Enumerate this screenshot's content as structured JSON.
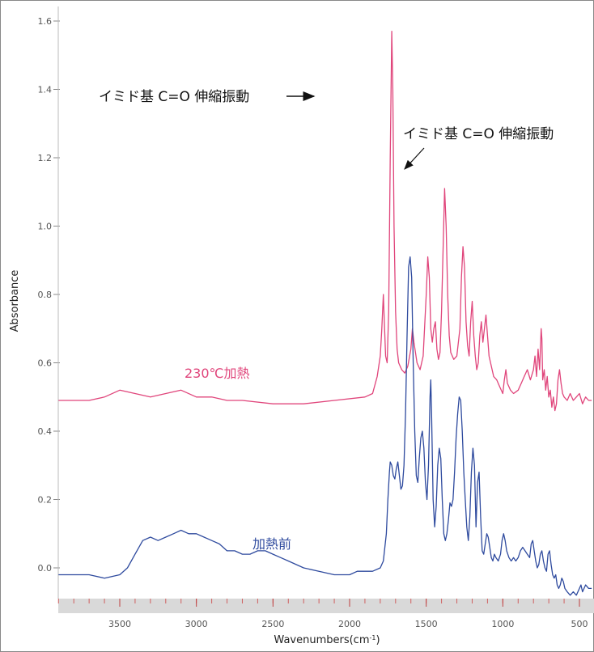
{
  "chart_data": {
    "type": "line",
    "xlabel": "Wavenumbers(cm-1)",
    "xlabel_main": "Wavenumbers(cm",
    "xlabel_sup": "-1",
    "xlabel_close": ")",
    "ylabel": "Absorbance",
    "xlim": [
      3900,
      420
    ],
    "ylim": [
      -0.1,
      1.6
    ],
    "x_ticks": [
      3500,
      3000,
      2500,
      2000,
      1500,
      1000,
      500
    ],
    "x_tick_labels": [
      "3500",
      "3000",
      "2500",
      "2000",
      "1500",
      "1000",
      "500"
    ],
    "y_ticks": [
      0.0,
      0.2,
      0.4,
      0.6,
      0.8,
      1.0,
      1.2,
      1.4,
      1.6
    ],
    "y_tick_labels": [
      "0.0",
      "0.2",
      "0.4",
      "0.6",
      "0.8",
      "1.0",
      "1.2",
      "1.4",
      "1.6"
    ],
    "grid": false,
    "series": [
      {
        "name": "230℃加熱",
        "color": "#e0457b",
        "points": [
          [
            3900,
            0.49
          ],
          [
            3700,
            0.49
          ],
          [
            3600,
            0.5
          ],
          [
            3500,
            0.52
          ],
          [
            3400,
            0.51
          ],
          [
            3300,
            0.5
          ],
          [
            3200,
            0.51
          ],
          [
            3100,
            0.52
          ],
          [
            3000,
            0.5
          ],
          [
            2900,
            0.5
          ],
          [
            2800,
            0.49
          ],
          [
            2700,
            0.49
          ],
          [
            2500,
            0.48
          ],
          [
            2300,
            0.48
          ],
          [
            2100,
            0.49
          ],
          [
            1900,
            0.5
          ],
          [
            1850,
            0.51
          ],
          [
            1820,
            0.56
          ],
          [
            1800,
            0.62
          ],
          [
            1790,
            0.7
          ],
          [
            1780,
            0.8
          ],
          [
            1775,
            0.74
          ],
          [
            1765,
            0.62
          ],
          [
            1755,
            0.6
          ],
          [
            1745,
            0.75
          ],
          [
            1735,
            1.2
          ],
          [
            1725,
            1.57
          ],
          [
            1718,
            1.4
          ],
          [
            1710,
            1.0
          ],
          [
            1700,
            0.75
          ],
          [
            1690,
            0.64
          ],
          [
            1680,
            0.6
          ],
          [
            1660,
            0.58
          ],
          [
            1640,
            0.57
          ],
          [
            1620,
            0.59
          ],
          [
            1600,
            0.64
          ],
          [
            1590,
            0.7
          ],
          [
            1580,
            0.66
          ],
          [
            1560,
            0.6
          ],
          [
            1540,
            0.58
          ],
          [
            1520,
            0.62
          ],
          [
            1500,
            0.8
          ],
          [
            1490,
            0.91
          ],
          [
            1480,
            0.85
          ],
          [
            1470,
            0.7
          ],
          [
            1460,
            0.66
          ],
          [
            1450,
            0.7
          ],
          [
            1440,
            0.72
          ],
          [
            1430,
            0.64
          ],
          [
            1420,
            0.61
          ],
          [
            1410,
            0.63
          ],
          [
            1400,
            0.75
          ],
          [
            1390,
            0.93
          ],
          [
            1380,
            1.11
          ],
          [
            1370,
            1.0
          ],
          [
            1360,
            0.8
          ],
          [
            1350,
            0.68
          ],
          [
            1340,
            0.63
          ],
          [
            1320,
            0.61
          ],
          [
            1300,
            0.62
          ],
          [
            1280,
            0.7
          ],
          [
            1270,
            0.85
          ],
          [
            1260,
            0.94
          ],
          [
            1250,
            0.88
          ],
          [
            1240,
            0.72
          ],
          [
            1230,
            0.65
          ],
          [
            1220,
            0.62
          ],
          [
            1210,
            0.72
          ],
          [
            1200,
            0.78
          ],
          [
            1190,
            0.68
          ],
          [
            1180,
            0.62
          ],
          [
            1170,
            0.58
          ],
          [
            1160,
            0.6
          ],
          [
            1150,
            0.68
          ],
          [
            1140,
            0.72
          ],
          [
            1130,
            0.66
          ],
          [
            1120,
            0.7
          ],
          [
            1110,
            0.74
          ],
          [
            1100,
            0.68
          ],
          [
            1090,
            0.62
          ],
          [
            1080,
            0.6
          ],
          [
            1060,
            0.56
          ],
          [
            1040,
            0.55
          ],
          [
            1020,
            0.53
          ],
          [
            1000,
            0.51
          ],
          [
            990,
            0.55
          ],
          [
            980,
            0.58
          ],
          [
            970,
            0.54
          ],
          [
            950,
            0.52
          ],
          [
            930,
            0.51
          ],
          [
            900,
            0.52
          ],
          [
            880,
            0.54
          ],
          [
            860,
            0.56
          ],
          [
            840,
            0.58
          ],
          [
            820,
            0.55
          ],
          [
            800,
            0.58
          ],
          [
            790,
            0.62
          ],
          [
            780,
            0.56
          ],
          [
            770,
            0.64
          ],
          [
            760,
            0.58
          ],
          [
            750,
            0.7
          ],
          [
            745,
            0.67
          ],
          [
            740,
            0.55
          ],
          [
            730,
            0.58
          ],
          [
            720,
            0.52
          ],
          [
            710,
            0.56
          ],
          [
            700,
            0.5
          ],
          [
            690,
            0.52
          ],
          [
            680,
            0.47
          ],
          [
            670,
            0.5
          ],
          [
            660,
            0.46
          ],
          [
            650,
            0.48
          ],
          [
            640,
            0.55
          ],
          [
            630,
            0.58
          ],
          [
            620,
            0.54
          ],
          [
            610,
            0.51
          ],
          [
            600,
            0.5
          ],
          [
            580,
            0.49
          ],
          [
            560,
            0.51
          ],
          [
            540,
            0.49
          ],
          [
            520,
            0.5
          ],
          [
            500,
            0.51
          ],
          [
            480,
            0.48
          ],
          [
            460,
            0.5
          ],
          [
            440,
            0.49
          ],
          [
            420,
            0.49
          ]
        ]
      },
      {
        "name": "加熱前",
        "color": "#2e4a9e",
        "points": [
          [
            3900,
            -0.02
          ],
          [
            3800,
            -0.02
          ],
          [
            3700,
            -0.02
          ],
          [
            3600,
            -0.03
          ],
          [
            3500,
            -0.02
          ],
          [
            3450,
            0.0
          ],
          [
            3400,
            0.04
          ],
          [
            3350,
            0.08
          ],
          [
            3300,
            0.09
          ],
          [
            3250,
            0.08
          ],
          [
            3200,
            0.09
          ],
          [
            3150,
            0.1
          ],
          [
            3100,
            0.11
          ],
          [
            3050,
            0.1
          ],
          [
            3000,
            0.1
          ],
          [
            2950,
            0.09
          ],
          [
            2900,
            0.08
          ],
          [
            2850,
            0.07
          ],
          [
            2800,
            0.05
          ],
          [
            2750,
            0.05
          ],
          [
            2700,
            0.04
          ],
          [
            2650,
            0.04
          ],
          [
            2600,
            0.05
          ],
          [
            2550,
            0.05
          ],
          [
            2500,
            0.04
          ],
          [
            2450,
            0.03
          ],
          [
            2400,
            0.02
          ],
          [
            2300,
            0.0
          ],
          [
            2200,
            -0.01
          ],
          [
            2100,
            -0.02
          ],
          [
            2000,
            -0.02
          ],
          [
            1950,
            -0.01
          ],
          [
            1900,
            -0.01
          ],
          [
            1850,
            -0.01
          ],
          [
            1800,
            0.0
          ],
          [
            1780,
            0.02
          ],
          [
            1760,
            0.1
          ],
          [
            1750,
            0.2
          ],
          [
            1740,
            0.28
          ],
          [
            1735,
            0.31
          ],
          [
            1725,
            0.3
          ],
          [
            1715,
            0.27
          ],
          [
            1705,
            0.26
          ],
          [
            1695,
            0.29
          ],
          [
            1685,
            0.31
          ],
          [
            1675,
            0.27
          ],
          [
            1665,
            0.23
          ],
          [
            1655,
            0.24
          ],
          [
            1645,
            0.3
          ],
          [
            1635,
            0.45
          ],
          [
            1625,
            0.68
          ],
          [
            1615,
            0.88
          ],
          [
            1605,
            0.91
          ],
          [
            1595,
            0.85
          ],
          [
            1585,
            0.6
          ],
          [
            1575,
            0.4
          ],
          [
            1565,
            0.27
          ],
          [
            1555,
            0.25
          ],
          [
            1545,
            0.32
          ],
          [
            1535,
            0.38
          ],
          [
            1525,
            0.4
          ],
          [
            1515,
            0.35
          ],
          [
            1505,
            0.25
          ],
          [
            1495,
            0.2
          ],
          [
            1485,
            0.3
          ],
          [
            1475,
            0.5
          ],
          [
            1470,
            0.55
          ],
          [
            1465,
            0.45
          ],
          [
            1455,
            0.2
          ],
          [
            1445,
            0.12
          ],
          [
            1435,
            0.18
          ],
          [
            1425,
            0.3
          ],
          [
            1415,
            0.35
          ],
          [
            1405,
            0.32
          ],
          [
            1395,
            0.2
          ],
          [
            1385,
            0.1
          ],
          [
            1375,
            0.08
          ],
          [
            1365,
            0.1
          ],
          [
            1355,
            0.14
          ],
          [
            1345,
            0.19
          ],
          [
            1335,
            0.18
          ],
          [
            1325,
            0.2
          ],
          [
            1315,
            0.28
          ],
          [
            1305,
            0.38
          ],
          [
            1295,
            0.45
          ],
          [
            1285,
            0.5
          ],
          [
            1275,
            0.49
          ],
          [
            1265,
            0.4
          ],
          [
            1255,
            0.28
          ],
          [
            1245,
            0.2
          ],
          [
            1235,
            0.12
          ],
          [
            1225,
            0.08
          ],
          [
            1215,
            0.15
          ],
          [
            1205,
            0.28
          ],
          [
            1195,
            0.35
          ],
          [
            1185,
            0.3
          ],
          [
            1175,
            0.12
          ],
          [
            1165,
            0.25
          ],
          [
            1155,
            0.28
          ],
          [
            1145,
            0.15
          ],
          [
            1135,
            0.05
          ],
          [
            1125,
            0.04
          ],
          [
            1115,
            0.07
          ],
          [
            1105,
            0.1
          ],
          [
            1095,
            0.09
          ],
          [
            1085,
            0.06
          ],
          [
            1075,
            0.03
          ],
          [
            1065,
            0.02
          ],
          [
            1055,
            0.04
          ],
          [
            1045,
            0.03
          ],
          [
            1030,
            0.02
          ],
          [
            1015,
            0.04
          ],
          [
            1005,
            0.08
          ],
          [
            995,
            0.1
          ],
          [
            985,
            0.08
          ],
          [
            975,
            0.05
          ],
          [
            960,
            0.03
          ],
          [
            945,
            0.02
          ],
          [
            930,
            0.03
          ],
          [
            915,
            0.02
          ],
          [
            900,
            0.03
          ],
          [
            885,
            0.05
          ],
          [
            870,
            0.06
          ],
          [
            855,
            0.05
          ],
          [
            840,
            0.04
          ],
          [
            825,
            0.03
          ],
          [
            815,
            0.07
          ],
          [
            805,
            0.08
          ],
          [
            795,
            0.05
          ],
          [
            785,
            0.02
          ],
          [
            775,
            0.0
          ],
          [
            765,
            0.01
          ],
          [
            755,
            0.04
          ],
          [
            745,
            0.05
          ],
          [
            735,
            0.02
          ],
          [
            725,
            0.0
          ],
          [
            715,
            -0.01
          ],
          [
            705,
            0.04
          ],
          [
            695,
            0.05
          ],
          [
            685,
            0.01
          ],
          [
            675,
            -0.02
          ],
          [
            665,
            -0.03
          ],
          [
            655,
            -0.02
          ],
          [
            645,
            -0.05
          ],
          [
            635,
            -0.06
          ],
          [
            625,
            -0.05
          ],
          [
            615,
            -0.03
          ],
          [
            605,
            -0.04
          ],
          [
            595,
            -0.06
          ],
          [
            580,
            -0.07
          ],
          [
            560,
            -0.08
          ],
          [
            540,
            -0.07
          ],
          [
            520,
            -0.08
          ],
          [
            500,
            -0.06
          ],
          [
            490,
            -0.05
          ],
          [
            480,
            -0.07
          ],
          [
            470,
            -0.06
          ],
          [
            460,
            -0.05
          ],
          [
            440,
            -0.06
          ],
          [
            420,
            -0.06
          ]
        ]
      }
    ],
    "series_labels": [
      {
        "text": "230℃加熱",
        "color": "#e0457b"
      },
      {
        "text": "加熱前",
        "color": "#2e4a9e"
      }
    ],
    "annotations": [
      {
        "text": "イミド基 C=O 伸縮振動"
      },
      {
        "text": "イミド基 C=O 伸縮振動"
      }
    ]
  }
}
